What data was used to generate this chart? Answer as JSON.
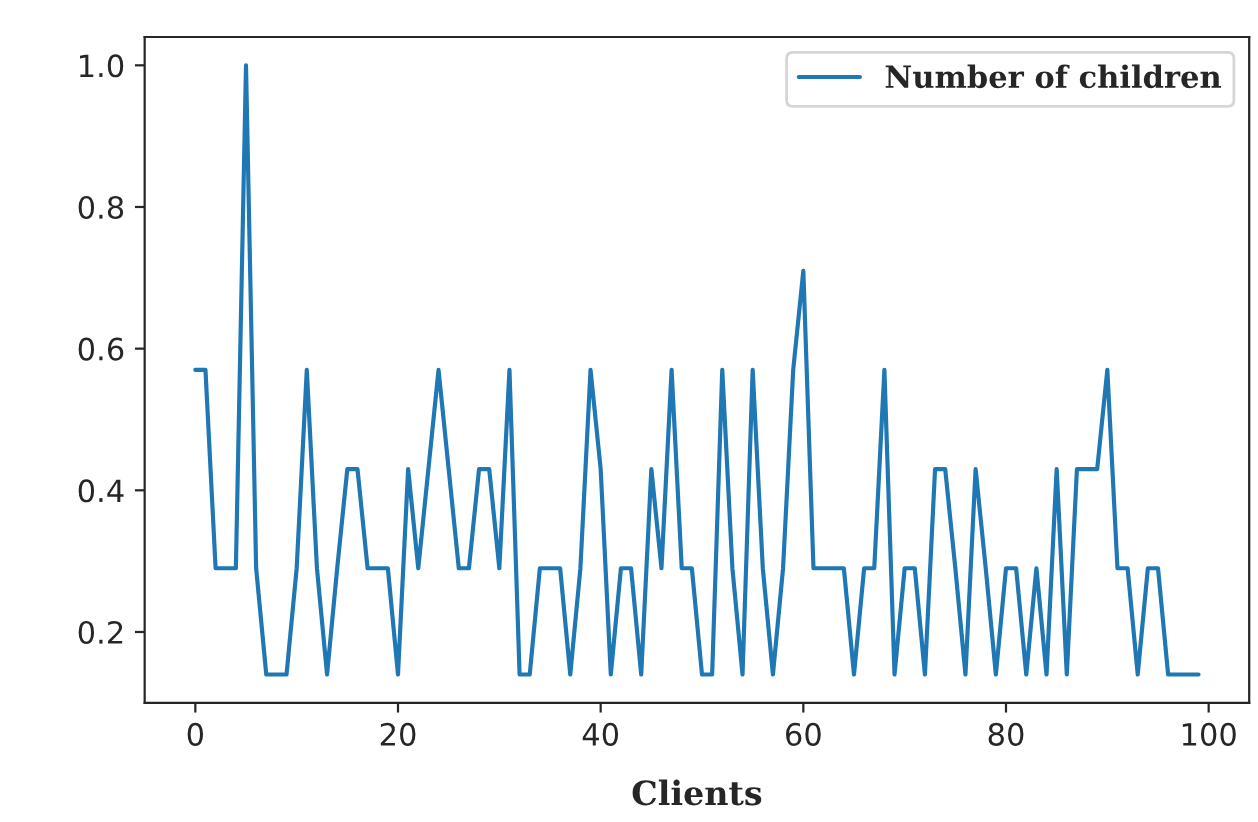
{
  "chart_data": {
    "type": "line",
    "xlabel": "Clients",
    "x": [
      0,
      1,
      2,
      3,
      4,
      5,
      6,
      7,
      8,
      9,
      10,
      11,
      12,
      13,
      14,
      15,
      16,
      17,
      18,
      19,
      20,
      21,
      22,
      23,
      24,
      25,
      26,
      27,
      28,
      29,
      30,
      31,
      32,
      33,
      34,
      35,
      36,
      37,
      38,
      39,
      40,
      41,
      42,
      43,
      44,
      45,
      46,
      47,
      48,
      49,
      50,
      51,
      52,
      53,
      54,
      55,
      56,
      57,
      58,
      59,
      60,
      61,
      62,
      63,
      64,
      65,
      66,
      67,
      68,
      69,
      70,
      71,
      72,
      73,
      74,
      75,
      76,
      77,
      78,
      79,
      80,
      81,
      82,
      83,
      84,
      85,
      86,
      87,
      88,
      89,
      90,
      91,
      92,
      93,
      94,
      95,
      96,
      97,
      98,
      99
    ],
    "series": [
      {
        "name": "Number of children",
        "color": "#1f77b4",
        "values": [
          0.57,
          0.57,
          0.29,
          0.29,
          0.29,
          1.0,
          0.29,
          0.14,
          0.14,
          0.14,
          0.29,
          0.57,
          0.29,
          0.14,
          0.29,
          0.43,
          0.43,
          0.29,
          0.29,
          0.29,
          0.14,
          0.43,
          0.29,
          0.43,
          0.57,
          0.43,
          0.29,
          0.29,
          0.43,
          0.43,
          0.29,
          0.57,
          0.14,
          0.14,
          0.29,
          0.29,
          0.29,
          0.14,
          0.29,
          0.57,
          0.43,
          0.14,
          0.29,
          0.29,
          0.14,
          0.43,
          0.29,
          0.57,
          0.29,
          0.29,
          0.14,
          0.14,
          0.57,
          0.29,
          0.14,
          0.57,
          0.29,
          0.14,
          0.29,
          0.57,
          0.71,
          0.29,
          0.29,
          0.29,
          0.29,
          0.14,
          0.29,
          0.29,
          0.57,
          0.14,
          0.29,
          0.29,
          0.14,
          0.43,
          0.43,
          0.29,
          0.14,
          0.43,
          0.29,
          0.14,
          0.29,
          0.29,
          0.14,
          0.29,
          0.14,
          0.43,
          0.14,
          0.43,
          0.43,
          0.43,
          0.57,
          0.29,
          0.29,
          0.14,
          0.29,
          0.29,
          0.14,
          0.14,
          0.14,
          0.14
        ]
      }
    ],
    "xlim": [
      -5,
      104
    ],
    "ylim": [
      0.1,
      1.04
    ],
    "xticks": [
      0,
      20,
      40,
      60,
      80,
      100
    ],
    "yticks": [
      0.2,
      0.4,
      0.6,
      0.8,
      {
        "value": 1.0,
        "label": "1.0"
      }
    ],
    "legend": "top right",
    "grid": false,
    "marker": "none",
    "line_style": "solid"
  }
}
